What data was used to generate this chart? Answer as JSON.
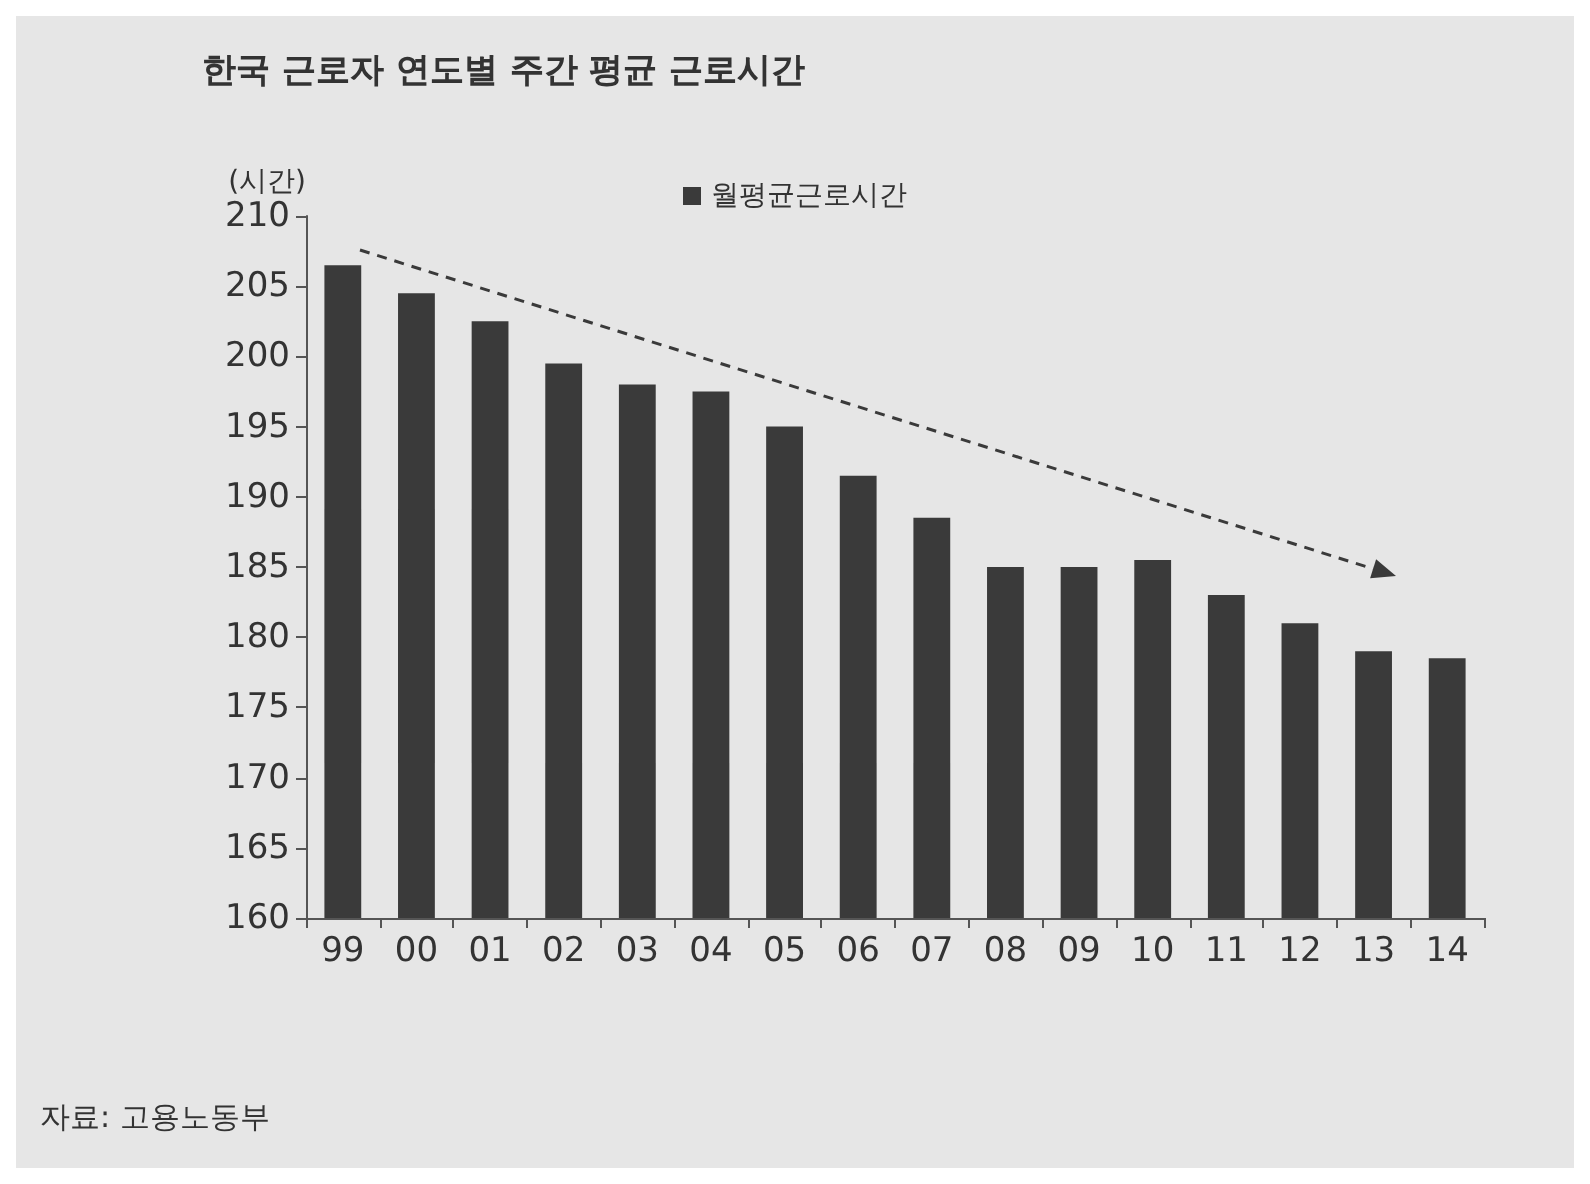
{
  "chart_data": {
    "type": "bar",
    "title": "한국 근로자 연도별 주간 평균 근로시간",
    "ylabel": "(시간)",
    "categories": [
      "99",
      "00",
      "01",
      "02",
      "03",
      "04",
      "05",
      "06",
      "07",
      "08",
      "09",
      "10",
      "11",
      "12",
      "13",
      "14"
    ],
    "series": [
      {
        "name": "월평균근로시간",
        "color": "#3a3a3a",
        "values": [
          206.5,
          204.5,
          202.5,
          199.5,
          198,
          197.5,
          195,
          191.5,
          188.5,
          185,
          185,
          185.5,
          183,
          181,
          179,
          178.5
        ]
      }
    ],
    "ylim": [
      160,
      210
    ],
    "yticks": [
      160,
      165,
      170,
      175,
      180,
      185,
      190,
      195,
      200,
      205,
      210
    ],
    "grid": false,
    "legend": "top",
    "annotations": [
      "자료: 고용노동부"
    ]
  }
}
